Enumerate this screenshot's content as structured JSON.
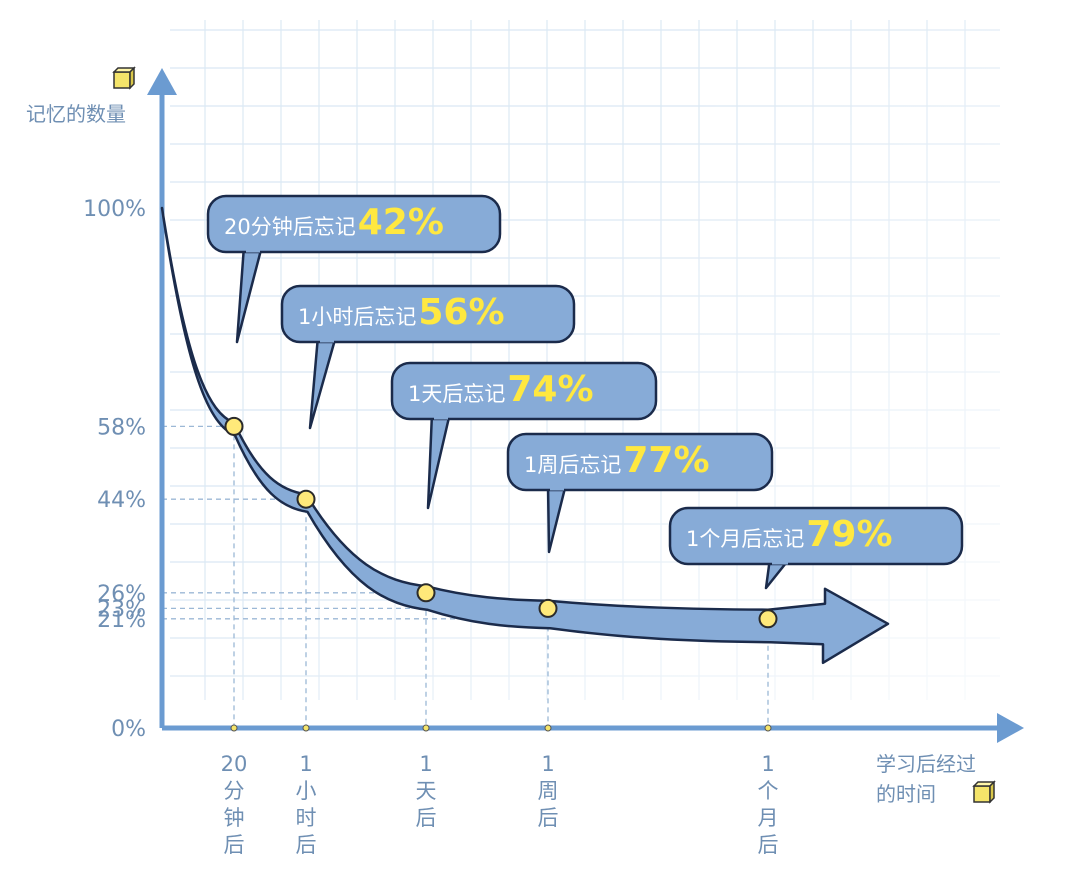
{
  "colors": {
    "axis": "#6b9bd1",
    "curve_fill": "#87abd7",
    "curve_stroke": "#1b2b4b",
    "callout_fill": "#87abd7",
    "highlight": "#ffe840",
    "point_fill": "#ffe97a",
    "grid": "#dbe8f4",
    "tick_text": "#6f8fb3"
  },
  "chart_data": {
    "type": "line",
    "ylabel": "记忆的数量",
    "xlabel_lines": [
      "学习后经过",
      "的时间"
    ],
    "y_ticks": [
      "100%",
      "58%",
      "44%",
      "26%",
      "23%",
      "21%",
      "0%"
    ],
    "y_tick_values": [
      100,
      58,
      44,
      26,
      23,
      21,
      0
    ],
    "categories": [
      "20分钟后",
      "1小时后",
      "1天后",
      "1周后",
      "1个月后"
    ],
    "category_lines": [
      [
        "20",
        "分",
        "钟",
        "后"
      ],
      [
        "1",
        "小",
        "时",
        "后"
      ],
      [
        "1",
        "天",
        "后"
      ],
      [
        "1",
        "周",
        "后"
      ],
      [
        "1",
        "个",
        "月",
        "后"
      ]
    ],
    "series": [
      {
        "values": [
          58,
          44,
          26,
          23,
          21
        ]
      }
    ],
    "annotations": [
      {
        "text": "20分钟后忘记",
        "value": "42%"
      },
      {
        "text": "1小时后忘记",
        "value": "56%"
      },
      {
        "text": "1天后忘记",
        "value": "74%"
      },
      {
        "text": "1周后忘记",
        "value": "77%"
      },
      {
        "text": "1个月后忘记",
        "value": "79%"
      }
    ],
    "ylim": [
      0,
      100
    ],
    "grid": true
  }
}
